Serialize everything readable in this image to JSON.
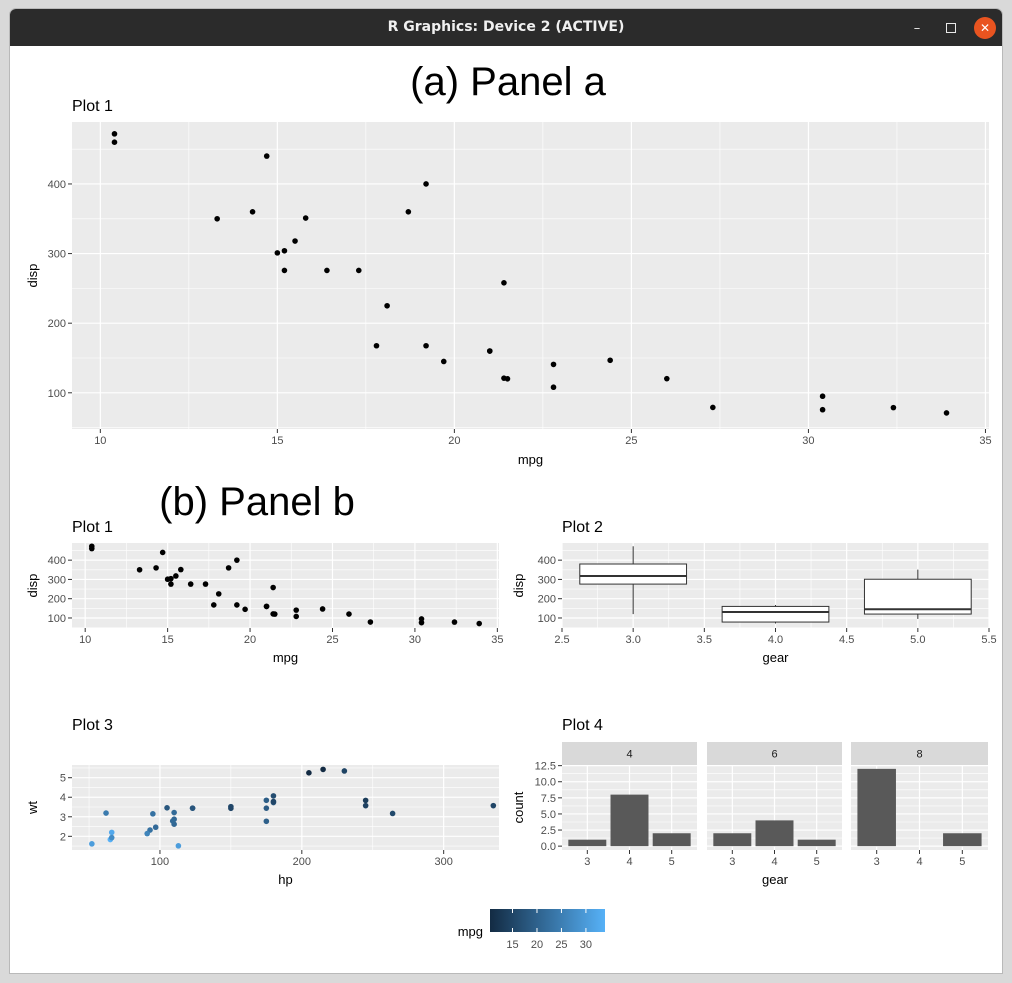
{
  "window": {
    "title": "R Graphics: Device 2 (ACTIVE)",
    "minimize_icon": "minimize-icon",
    "maximize_icon": "maximize-icon",
    "close_icon": "close-icon",
    "close_color": "#e95420"
  },
  "panel_a": {
    "caption": "(a) Panel a"
  },
  "panel_b": {
    "caption": "(b) Panel b"
  },
  "colors": {
    "panel_bg": "#ebebeb",
    "grid": "#ffffff",
    "point": "#000000",
    "bar": "#595959",
    "strip": "#d9d9d9",
    "mpg_low": "#132b43",
    "mpg_high": "#56b1f7"
  },
  "chart_data": [
    {
      "id": "panel_a_plot1",
      "type": "scatter",
      "title": "Plot 1",
      "xlabel": "mpg",
      "ylabel": "disp",
      "xlim": [
        9.2,
        35.1
      ],
      "ylim": [
        48,
        489
      ],
      "xticks": [
        10,
        15,
        20,
        25,
        30,
        35
      ],
      "yticks": [
        100,
        200,
        300,
        400
      ],
      "grid": true,
      "x": [
        21,
        21,
        22.8,
        21.4,
        18.7,
        18.1,
        14.3,
        24.4,
        22.8,
        19.2,
        17.8,
        16.4,
        17.3,
        15.2,
        10.4,
        10.4,
        14.7,
        32.4,
        30.4,
        33.9,
        21.5,
        15.5,
        15.2,
        13.3,
        19.2,
        27.3,
        26,
        30.4,
        15.8,
        19.7,
        15,
        21.4
      ],
      "y": [
        160,
        160,
        108,
        258,
        360,
        225,
        360,
        146.7,
        140.8,
        167.6,
        167.6,
        275.8,
        275.8,
        275.8,
        472,
        460,
        440,
        78.7,
        75.7,
        71.1,
        120.1,
        318,
        304,
        350,
        400,
        79,
        120.3,
        95.1,
        351,
        145,
        301,
        121
      ]
    },
    {
      "id": "panel_b_plot1",
      "type": "scatter",
      "title": "Plot 1",
      "xlabel": "mpg",
      "ylabel": "disp",
      "xlim": [
        9.2,
        35.1
      ],
      "ylim": [
        48,
        489
      ],
      "xticks": [
        10,
        15,
        20,
        25,
        30,
        35
      ],
      "yticks": [
        100,
        200,
        300,
        400
      ],
      "grid": true,
      "x": [
        21,
        21,
        22.8,
        21.4,
        18.7,
        18.1,
        14.3,
        24.4,
        22.8,
        19.2,
        17.8,
        16.4,
        17.3,
        15.2,
        10.4,
        10.4,
        14.7,
        32.4,
        30.4,
        33.9,
        21.5,
        15.5,
        15.2,
        13.3,
        19.2,
        27.3,
        26,
        30.4,
        15.8,
        19.7,
        15,
        21.4
      ],
      "y": [
        160,
        160,
        108,
        258,
        360,
        225,
        360,
        146.7,
        140.8,
        167.6,
        167.6,
        275.8,
        275.8,
        275.8,
        472,
        460,
        440,
        78.7,
        75.7,
        71.1,
        120.1,
        318,
        304,
        350,
        400,
        79,
        120.3,
        95.1,
        351,
        145,
        301,
        121
      ]
    },
    {
      "id": "panel_b_plot2",
      "type": "boxplot",
      "title": "Plot 2",
      "xlabel": "gear",
      "ylabel": "disp",
      "xlim": [
        2.5,
        5.5
      ],
      "ylim": [
        48,
        489
      ],
      "xticks": [
        2.5,
        3.0,
        3.5,
        4.0,
        4.5,
        5.0,
        5.5
      ],
      "yticks": [
        100,
        200,
        300,
        400
      ],
      "grid": true,
      "boxes": [
        {
          "x": 3,
          "min": 120.1,
          "q1": 275.8,
          "median": 318,
          "q3": 380,
          "max": 472
        },
        {
          "x": 4,
          "min": 71.1,
          "q1": 78.9,
          "median": 130.9,
          "q3": 160,
          "max": 167.6
        },
        {
          "x": 5,
          "min": 95.1,
          "q1": 120.3,
          "median": 145,
          "q3": 301,
          "max": 351
        }
      ]
    },
    {
      "id": "panel_b_plot3",
      "type": "scatter",
      "title": "Plot 3",
      "xlabel": "hp",
      "ylabel": "wt",
      "xlim": [
        38,
        339
      ],
      "ylim": [
        1.3,
        5.65
      ],
      "xticks": [
        100,
        200,
        300
      ],
      "yticks": [
        2,
        3,
        4,
        5
      ],
      "grid": true,
      "color_by": "mpg",
      "x": [
        110,
        110,
        93,
        110,
        175,
        105,
        245,
        62,
        95,
        123,
        123,
        180,
        180,
        180,
        205,
        215,
        230,
        66,
        52,
        65,
        97,
        150,
        150,
        245,
        175,
        66,
        91,
        113,
        264,
        175,
        335,
        109
      ],
      "y": [
        2.62,
        2.875,
        2.32,
        3.215,
        3.44,
        3.46,
        3.57,
        3.19,
        3.15,
        3.44,
        3.44,
        4.07,
        3.73,
        3.78,
        5.25,
        5.424,
        5.345,
        2.2,
        1.615,
        1.835,
        2.465,
        3.52,
        3.435,
        3.84,
        3.845,
        1.935,
        2.14,
        1.513,
        3.17,
        2.77,
        3.57,
        2.78
      ],
      "mpg": [
        21,
        21,
        22.8,
        21.4,
        18.7,
        18.1,
        14.3,
        24.4,
        22.8,
        19.2,
        17.8,
        16.4,
        17.3,
        15.2,
        10.4,
        10.4,
        14.7,
        32.4,
        30.4,
        33.9,
        21.5,
        15.5,
        15.2,
        13.3,
        19.2,
        27.3,
        26,
        30.4,
        15.8,
        19.7,
        15,
        21.4
      ]
    },
    {
      "id": "panel_b_plot4",
      "type": "bar",
      "title": "Plot 4",
      "xlabel": "gear",
      "ylabel": "count",
      "ylim": [
        -0.6,
        12.6
      ],
      "yticks": [
        0.0,
        2.5,
        5.0,
        7.5,
        10.0,
        12.5
      ],
      "ytick_labels": [
        "0.0",
        "2.5",
        "5.0",
        "7.5",
        "10.0",
        "12.5"
      ],
      "categories": [
        "3",
        "4",
        "5"
      ],
      "facets": [
        {
          "label": "4",
          "values": [
            1,
            8,
            2
          ]
        },
        {
          "label": "6",
          "values": [
            2,
            4,
            1
          ]
        },
        {
          "label": "8",
          "values": [
            12,
            0,
            2
          ]
        }
      ]
    }
  ],
  "legend": {
    "title": "mpg",
    "range": [
      10.4,
      33.9
    ],
    "ticks": [
      15,
      20,
      25,
      30
    ],
    "colors": [
      "#132b43",
      "#56b1f7"
    ]
  }
}
